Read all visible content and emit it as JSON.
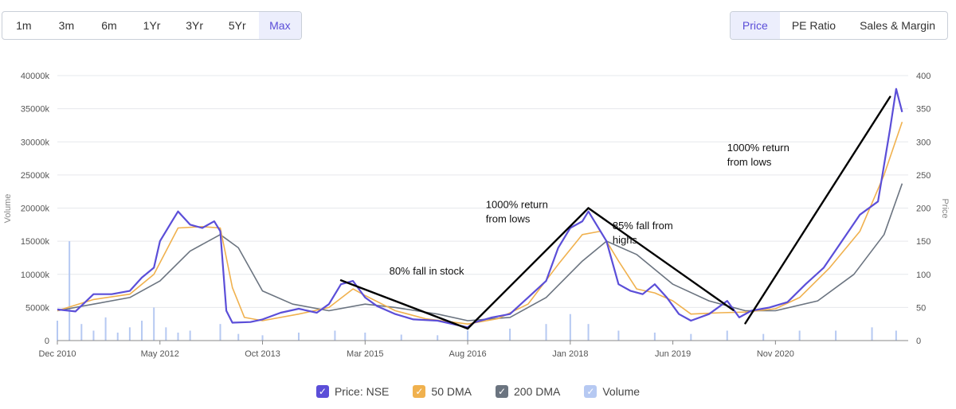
{
  "range_tabs": [
    {
      "label": "1m",
      "active": false
    },
    {
      "label": "3m",
      "active": false
    },
    {
      "label": "6m",
      "active": false
    },
    {
      "label": "1Yr",
      "active": false
    },
    {
      "label": "3Yr",
      "active": false
    },
    {
      "label": "5Yr",
      "active": false
    },
    {
      "label": "Max",
      "active": true
    }
  ],
  "metric_tabs": [
    {
      "label": "Price",
      "active": true
    },
    {
      "label": "PE Ratio",
      "active": false
    },
    {
      "label": "Sales & Margin",
      "active": false
    }
  ],
  "colors": {
    "price": "#5b4ed8",
    "dma50": "#f0b14e",
    "dma200": "#6b7480",
    "volume": "#b6c9f2",
    "annotation": "#000000",
    "active_tab_bg": "#eceefc"
  },
  "legend": [
    {
      "label": "Price: NSE",
      "color": "#5b4ed8"
    },
    {
      "label": "50 DMA",
      "color": "#f0b14e"
    },
    {
      "label": "200 DMA",
      "color": "#6b7480"
    },
    {
      "label": "Volume",
      "color": "#b6c9f2"
    }
  ],
  "chart_data": {
    "type": "line",
    "ylabel": "Price",
    "y2label": "Volume",
    "ylim": [
      0,
      400
    ],
    "y2lim": [
      0,
      40000
    ],
    "y_ticks": [
      "0",
      "50",
      "100",
      "150",
      "200",
      "250",
      "300",
      "350",
      "400"
    ],
    "y2_ticks": [
      "0",
      "5000k",
      "10000k",
      "15000k",
      "20000k",
      "25000k",
      "30000k",
      "35000k",
      "40000k"
    ],
    "x_ticks": [
      "Dec 2010",
      "May 2012",
      "Oct 2013",
      "Mar 2015",
      "Aug 2016",
      "Jan 2018",
      "Jun 2019",
      "Nov 2020"
    ],
    "x_tick_dates": [
      "2010-12",
      "2012-05",
      "2013-10",
      "2015-03",
      "2016-08",
      "2018-01",
      "2019-06",
      "2020-11"
    ],
    "series": [
      {
        "name": "Price: NSE",
        "type": "line",
        "points": [
          [
            "2010-12",
            47
          ],
          [
            "2011-03",
            44
          ],
          [
            "2011-06",
            70
          ],
          [
            "2011-09",
            70
          ],
          [
            "2011-12",
            75
          ],
          [
            "2012-02",
            95
          ],
          [
            "2012-04",
            110
          ],
          [
            "2012-05",
            150
          ],
          [
            "2012-07",
            180
          ],
          [
            "2012-08",
            195
          ],
          [
            "2012-10",
            175
          ],
          [
            "2012-12",
            170
          ],
          [
            "2013-02",
            180
          ],
          [
            "2013-03",
            165
          ],
          [
            "2013-04",
            45
          ],
          [
            "2013-05",
            27
          ],
          [
            "2013-08",
            28
          ],
          [
            "2013-10",
            32
          ],
          [
            "2014-01",
            42
          ],
          [
            "2014-04",
            48
          ],
          [
            "2014-07",
            42
          ],
          [
            "2014-09",
            55
          ],
          [
            "2014-11",
            85
          ],
          [
            "2015-01",
            90
          ],
          [
            "2015-03",
            65
          ],
          [
            "2015-05",
            52
          ],
          [
            "2015-08",
            40
          ],
          [
            "2015-11",
            32
          ],
          [
            "2016-03",
            30
          ],
          [
            "2016-06",
            24
          ],
          [
            "2016-08",
            20
          ],
          [
            "2016-09",
            27
          ],
          [
            "2016-12",
            35
          ],
          [
            "2017-03",
            40
          ],
          [
            "2017-06",
            65
          ],
          [
            "2017-09",
            90
          ],
          [
            "2017-11",
            140
          ],
          [
            "2018-01",
            170
          ],
          [
            "2018-03",
            180
          ],
          [
            "2018-04",
            195
          ],
          [
            "2018-05",
            180
          ],
          [
            "2018-07",
            150
          ],
          [
            "2018-09",
            85
          ],
          [
            "2018-11",
            75
          ],
          [
            "2019-01",
            70
          ],
          [
            "2019-03",
            85
          ],
          [
            "2019-05",
            65
          ],
          [
            "2019-07",
            40
          ],
          [
            "2019-09",
            30
          ],
          [
            "2019-12",
            40
          ],
          [
            "2020-03",
            60
          ],
          [
            "2020-05",
            35
          ],
          [
            "2020-07",
            45
          ],
          [
            "2020-10",
            50
          ],
          [
            "2021-01",
            58
          ],
          [
            "2021-04",
            85
          ],
          [
            "2021-07",
            110
          ],
          [
            "2021-10",
            150
          ],
          [
            "2022-01",
            190
          ],
          [
            "2022-04",
            210
          ],
          [
            "2022-06",
            320
          ],
          [
            "2022-07",
            380
          ],
          [
            "2022-08",
            345
          ]
        ]
      },
      {
        "name": "50 DMA",
        "type": "line",
        "points": [
          [
            "2010-12",
            45
          ],
          [
            "2011-06",
            62
          ],
          [
            "2011-12",
            70
          ],
          [
            "2012-04",
            100
          ],
          [
            "2012-08",
            170
          ],
          [
            "2012-12",
            172
          ],
          [
            "2013-03",
            170
          ],
          [
            "2013-05",
            80
          ],
          [
            "2013-07",
            35
          ],
          [
            "2013-10",
            30
          ],
          [
            "2014-04",
            40
          ],
          [
            "2014-09",
            50
          ],
          [
            "2015-01",
            78
          ],
          [
            "2015-03",
            68
          ],
          [
            "2015-08",
            45
          ],
          [
            "2016-01",
            33
          ],
          [
            "2016-08",
            25
          ],
          [
            "2017-01",
            33
          ],
          [
            "2017-06",
            55
          ],
          [
            "2017-11",
            115
          ],
          [
            "2018-03",
            160
          ],
          [
            "2018-06",
            165
          ],
          [
            "2018-09",
            120
          ],
          [
            "2018-12",
            78
          ],
          [
            "2019-03",
            72
          ],
          [
            "2019-06",
            60
          ],
          [
            "2019-09",
            40
          ],
          [
            "2020-02",
            42
          ],
          [
            "2020-06",
            43
          ],
          [
            "2020-11",
            48
          ],
          [
            "2021-03",
            65
          ],
          [
            "2021-08",
            110
          ],
          [
            "2022-01",
            165
          ],
          [
            "2022-05",
            250
          ],
          [
            "2022-08",
            330
          ]
        ]
      },
      {
        "name": "200 DMA",
        "type": "line",
        "points": [
          [
            "2010-12",
            45
          ],
          [
            "2011-06",
            55
          ],
          [
            "2011-12",
            65
          ],
          [
            "2012-05",
            90
          ],
          [
            "2012-10",
            135
          ],
          [
            "2013-03",
            160
          ],
          [
            "2013-06",
            140
          ],
          [
            "2013-10",
            75
          ],
          [
            "2014-03",
            55
          ],
          [
            "2014-09",
            45
          ],
          [
            "2015-03",
            55
          ],
          [
            "2015-08",
            50
          ],
          [
            "2016-03",
            40
          ],
          [
            "2016-08",
            30
          ],
          [
            "2017-03",
            35
          ],
          [
            "2017-09",
            65
          ],
          [
            "2018-03",
            120
          ],
          [
            "2018-07",
            150
          ],
          [
            "2018-12",
            130
          ],
          [
            "2019-06",
            85
          ],
          [
            "2019-12",
            60
          ],
          [
            "2020-06",
            45
          ],
          [
            "2020-11",
            45
          ],
          [
            "2021-06",
            60
          ],
          [
            "2021-12",
            100
          ],
          [
            "2022-05",
            160
          ],
          [
            "2022-08",
            237
          ]
        ]
      },
      {
        "name": "Volume",
        "type": "bar",
        "points": [
          [
            "2010-12",
            3000
          ],
          [
            "2011-02",
            15000
          ],
          [
            "2011-04",
            2500
          ],
          [
            "2011-06",
            1500
          ],
          [
            "2011-08",
            3500
          ],
          [
            "2011-10",
            1200
          ],
          [
            "2011-12",
            2000
          ],
          [
            "2012-02",
            3000
          ],
          [
            "2012-04",
            5000
          ],
          [
            "2012-06",
            2000
          ],
          [
            "2012-08",
            1200
          ],
          [
            "2012-10",
            1500
          ],
          [
            "2013-03",
            2500
          ],
          [
            "2013-06",
            1000
          ],
          [
            "2013-10",
            800
          ],
          [
            "2014-04",
            1200
          ],
          [
            "2014-10",
            1500
          ],
          [
            "2015-03",
            1200
          ],
          [
            "2015-09",
            900
          ],
          [
            "2016-03",
            800
          ],
          [
            "2016-08",
            1500
          ],
          [
            "2017-03",
            1800
          ],
          [
            "2017-09",
            2500
          ],
          [
            "2018-01",
            4000
          ],
          [
            "2018-04",
            2500
          ],
          [
            "2018-09",
            1500
          ],
          [
            "2019-03",
            1200
          ],
          [
            "2019-09",
            1000
          ],
          [
            "2020-03",
            1500
          ],
          [
            "2020-09",
            1000
          ],
          [
            "2021-03",
            1500
          ],
          [
            "2021-09",
            1500
          ],
          [
            "2022-03",
            2000
          ],
          [
            "2022-07",
            1500
          ]
        ]
      }
    ],
    "annotations": [
      {
        "text": "80% fall in stock",
        "lines": [
          "80% fall in stock"
        ],
        "anchor": [
          "2015-07",
          100
        ],
        "from": [
          "2014-11",
          91
        ],
        "to": [
          "2016-08",
          18
        ]
      },
      {
        "text": "1000% return from lows",
        "lines": [
          "1000% return",
          "from lows"
        ],
        "anchor": [
          "2016-11",
          200
        ],
        "from": [
          "2016-08",
          18
        ],
        "to": [
          "2018-04",
          200
        ]
      },
      {
        "text": "85% fall from highs",
        "lines": [
          "85% fall from",
          "highs"
        ],
        "anchor": [
          "2018-08",
          168
        ],
        "from": [
          "2018-04",
          200
        ],
        "to": [
          "2020-04",
          46
        ]
      },
      {
        "text": "1000% return from lows",
        "lines": [
          "1000% return",
          "from lows"
        ],
        "anchor": [
          "2020-03",
          286
        ],
        "from": [
          "2020-06",
          26
        ],
        "to": [
          "2022-06",
          368
        ]
      }
    ]
  }
}
